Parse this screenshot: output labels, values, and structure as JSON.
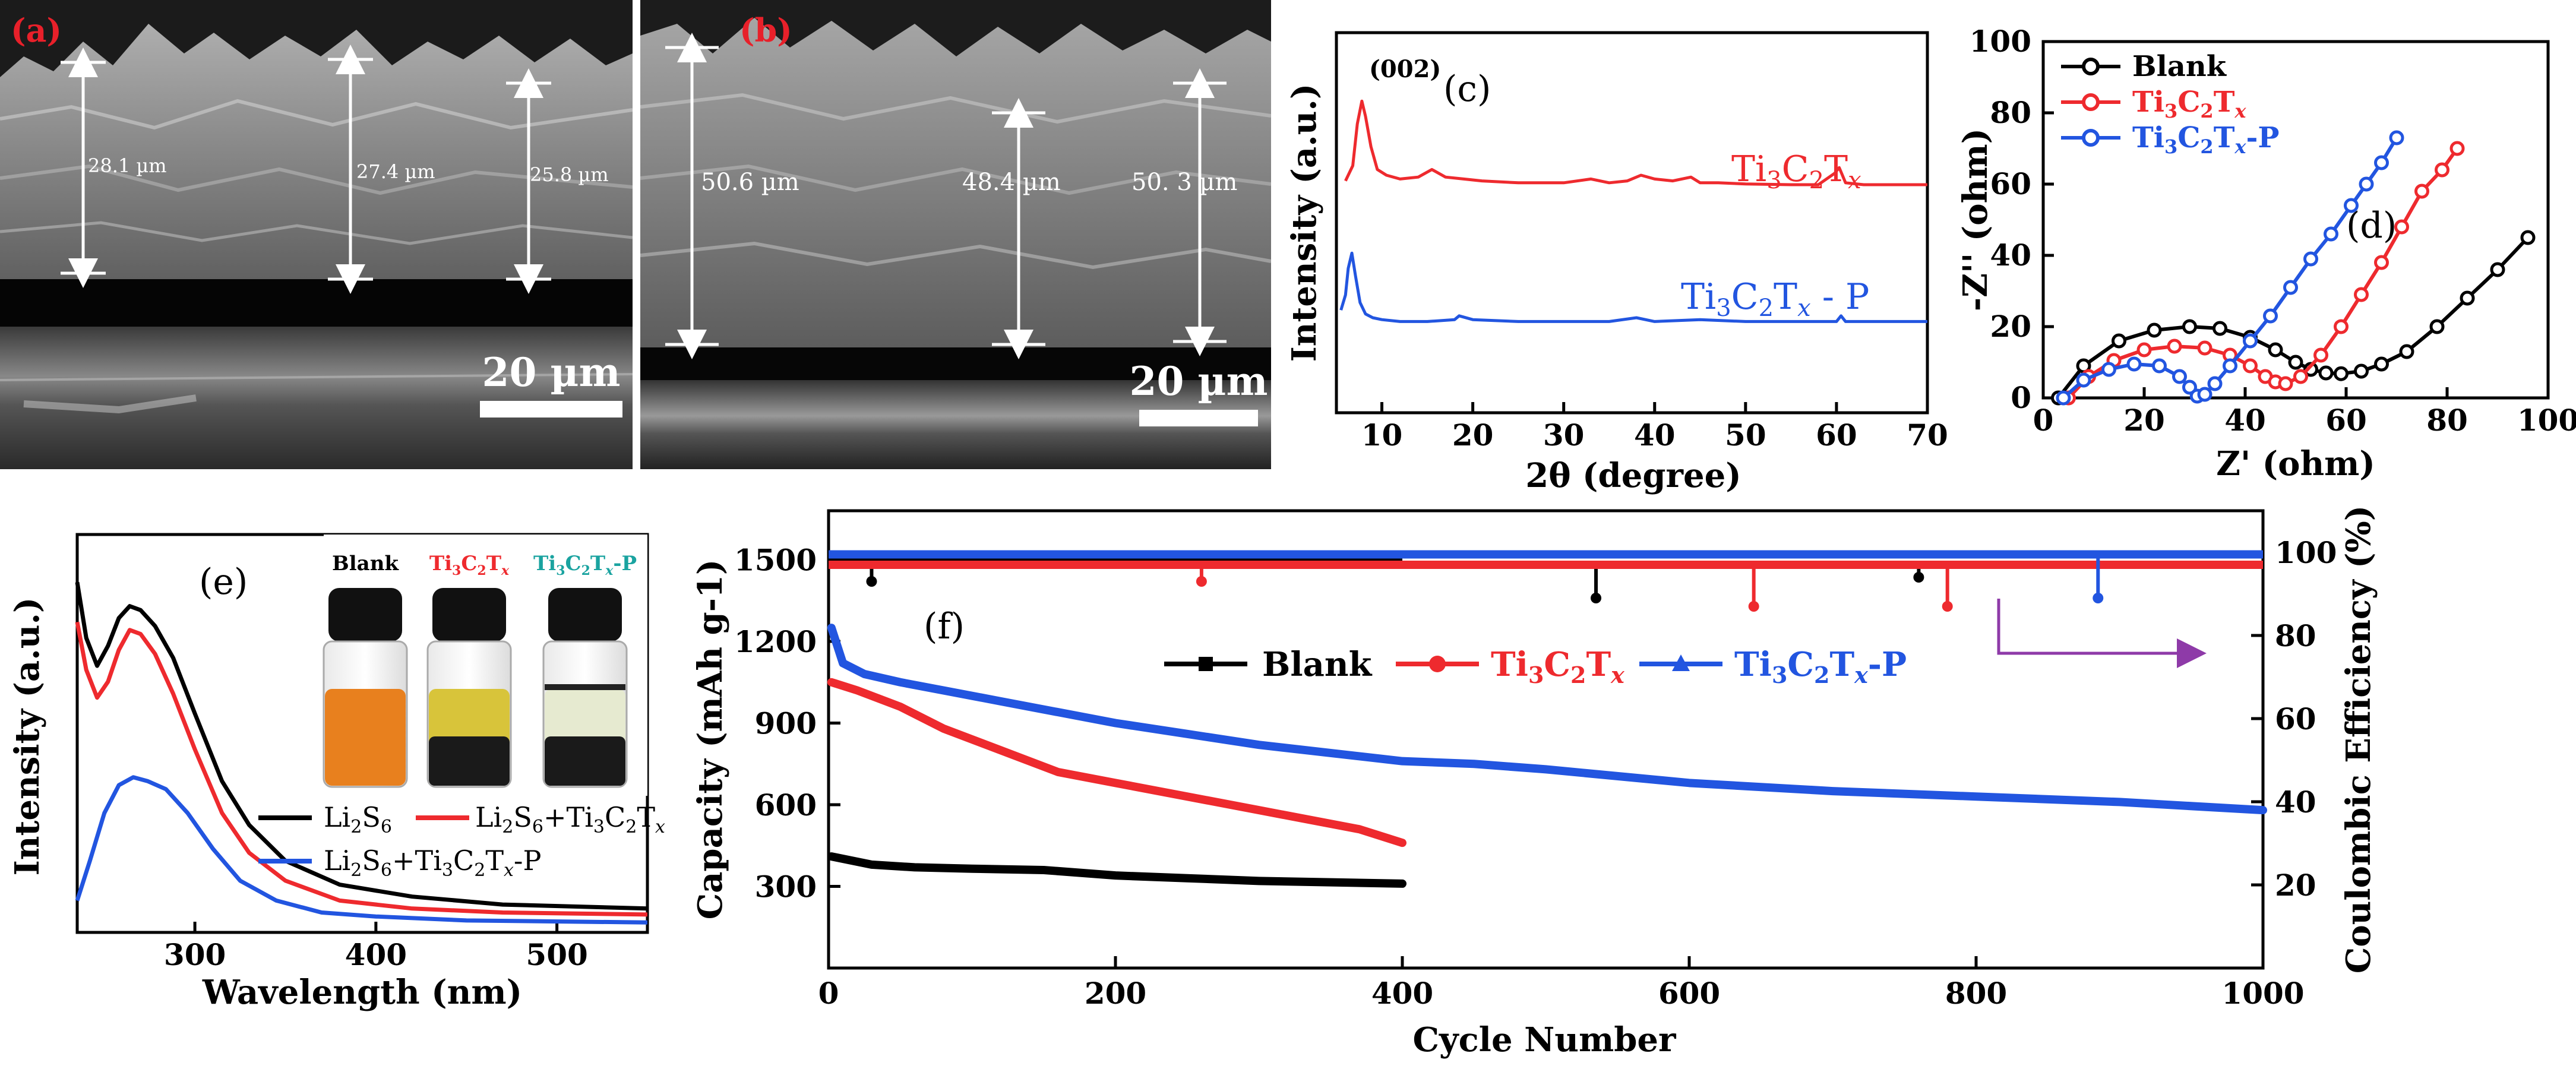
{
  "panel_labels": {
    "a": "(a)",
    "b": "(b)",
    "c": "(c)",
    "d": "(d)",
    "e": "(e)",
    "f": "(f)"
  },
  "colors": {
    "blank": "#000000",
    "mxene": "#ee2a2e",
    "mxene_p": "#2255e0",
    "arrow": "#8e3aa8",
    "panel_ab_label": "#e8202a"
  },
  "sem": {
    "a": {
      "measurements": [
        "28.1 µm",
        "27.4 µm",
        "25.8 µm"
      ],
      "scale_bar": "20 µm"
    },
    "b": {
      "measurements": [
        "50.6 µm",
        "48.4 µm",
        "50. 3 µm"
      ],
      "scale_bar": "20 µm"
    }
  },
  "inset_e": {
    "labels": {
      "blank": "Blank",
      "mxene": {
        "b": "Ti",
        "s1": "3",
        "c": "C",
        "s2": "2",
        "t": "T",
        "x": "x"
      },
      "mxene_p": {
        "b": "Ti",
        "s1": "3",
        "c": "C",
        "s2": "2",
        "t": "T",
        "x": "x",
        "suf": "-P"
      }
    },
    "vial_colors": [
      "#e8801e",
      "#d8c43a",
      "#e6ead0"
    ]
  },
  "chart_data": [
    {
      "id": "c",
      "type": "line",
      "title": "",
      "xlabel": "2θ (degree)",
      "ylabel": "Intensity (a.u.)",
      "xlim": [
        5,
        70
      ],
      "ylim": [
        0,
        10
      ],
      "x_ticks": [
        10,
        20,
        30,
        40,
        50,
        60,
        70
      ],
      "annotation": "(002)",
      "series": [
        {
          "name": "Ti3C2Tx",
          "label": {
            "b": "Ti",
            "s1": "3",
            "c": "C",
            "s2": "2",
            "t": "T",
            "x": "x",
            "suf": ""
          },
          "color": "#ee2a2e",
          "x": [
            6,
            6.8,
            7.3,
            7.8,
            8.2,
            8.8,
            9.5,
            10.5,
            12,
            14,
            15.5,
            17,
            19,
            21,
            25,
            30,
            33,
            35,
            37,
            38.5,
            40,
            42,
            44,
            45,
            47,
            50,
            55,
            58,
            59.8,
            60.3,
            61,
            63,
            66,
            70
          ],
          "y": [
            6.1,
            6.5,
            7.6,
            8.2,
            7.8,
            7,
            6.4,
            6.25,
            6.15,
            6.2,
            6.4,
            6.2,
            6.15,
            6.1,
            6.05,
            6.05,
            6.15,
            6.05,
            6.1,
            6.25,
            6.15,
            6.1,
            6.2,
            6.05,
            6.05,
            6.02,
            6.0,
            6.0,
            6.3,
            6.45,
            6.05,
            6.0,
            6.0,
            6.0
          ]
        },
        {
          "name": "Ti3C2Tx - P",
          "label": {
            "b": "Ti",
            "s1": "3",
            "c": "C",
            "s2": "2",
            "t": "T",
            "x": "x",
            "suf": " - P"
          },
          "color": "#2255e0",
          "x": [
            5.5,
            6,
            6.3,
            6.7,
            7.1,
            7.6,
            8.2,
            9,
            10,
            12,
            15,
            18,
            18.5,
            20,
            25,
            30,
            35,
            38,
            40,
            45,
            50,
            55,
            60,
            60.5,
            61,
            65,
            70
          ],
          "y": [
            2.7,
            3.1,
            3.8,
            4.2,
            3.6,
            2.9,
            2.6,
            2.5,
            2.45,
            2.4,
            2.4,
            2.45,
            2.55,
            2.45,
            2.4,
            2.4,
            2.4,
            2.5,
            2.4,
            2.45,
            2.4,
            2.4,
            2.4,
            2.55,
            2.4,
            2.4,
            2.4
          ]
        }
      ]
    },
    {
      "id": "d",
      "type": "scatter",
      "title": "",
      "xlabel": "Z' (ohm)",
      "ylabel": "-Z'' (ohm)",
      "xlim": [
        0,
        100
      ],
      "ylim": [
        0,
        100
      ],
      "x_ticks": [
        0,
        20,
        40,
        60,
        80,
        100
      ],
      "y_ticks": [
        0,
        20,
        40,
        60,
        80,
        100
      ],
      "series": [
        {
          "name": "Blank",
          "color": "#000000",
          "x": [
            3,
            8,
            15,
            22,
            29,
            35,
            41,
            46,
            50,
            53,
            56,
            59,
            63,
            67,
            72,
            78,
            84,
            90,
            96
          ],
          "y": [
            0,
            9,
            16,
            19,
            20,
            19.5,
            17,
            13.5,
            10,
            8,
            7,
            6.8,
            7.5,
            9.5,
            13,
            20,
            28,
            36,
            45
          ]
        },
        {
          "name": "Ti3C2Tx",
          "color": "#ee2a2e",
          "x": [
            5,
            9,
            14,
            20,
            26,
            32,
            37,
            41,
            44,
            46,
            48,
            51,
            55,
            59,
            63,
            67,
            71,
            75,
            79,
            82
          ],
          "y": [
            0,
            6,
            10.5,
            13.5,
            14.5,
            14,
            12,
            9,
            6,
            4.5,
            4,
            6,
            12,
            20,
            29,
            38,
            48,
            58,
            64,
            70
          ]
        },
        {
          "name": "Ti3C2Tx-P",
          "color": "#2255e0",
          "x": [
            4,
            8,
            13,
            18,
            23,
            27,
            29,
            30.5,
            32,
            34,
            37,
            41,
            45,
            49,
            53,
            57,
            61,
            64,
            67,
            70
          ],
          "y": [
            0,
            5,
            8,
            9.5,
            9,
            6,
            3,
            0.5,
            1,
            4,
            9,
            16,
            23,
            31,
            39,
            46,
            54,
            60,
            66,
            73
          ]
        }
      ]
    },
    {
      "id": "e",
      "type": "line",
      "title": "",
      "xlabel": "Wavelength (nm)",
      "ylabel": "Intensity (a.u.)",
      "xlim": [
        235,
        550
      ],
      "ylim": [
        0,
        100
      ],
      "x_ticks": [
        300,
        400,
        500
      ],
      "series": [
        {
          "name": "Li2S6",
          "label": {
            "b": "Li",
            "s1": "2",
            "c": "S",
            "s2": "6",
            "t": "",
            "x": "",
            "suf": ""
          },
          "color": "#000000",
          "x": [
            235,
            240,
            246,
            252,
            258,
            264,
            270,
            278,
            288,
            300,
            315,
            330,
            350,
            380,
            420,
            470,
            550
          ],
          "y": [
            88,
            74,
            67,
            72,
            79,
            82,
            81,
            77,
            69,
            55,
            38,
            27,
            18,
            12,
            9,
            7,
            6
          ]
        },
        {
          "name": "Li2S6+Ti3C2Tx",
          "label": {
            "b": "Li",
            "s1": "2",
            "c": "S",
            "s2": "6",
            "t": "+Ti",
            "x": "3",
            "suf": "C2Tx"
          },
          "color": "#ee2a2e",
          "x": [
            235,
            240,
            246,
            252,
            258,
            264,
            270,
            278,
            288,
            300,
            315,
            330,
            350,
            380,
            420,
            470,
            550
          ],
          "y": [
            78,
            66,
            59,
            63,
            71,
            76,
            75,
            70,
            60,
            46,
            30,
            20,
            13,
            8,
            6,
            5,
            4.5
          ]
        },
        {
          "name": "Li2S6+Ti3C2Tx-P",
          "label": {
            "b": "Li",
            "s1": "2",
            "c": "S",
            "s2": "6",
            "t": "+Ti",
            "x": "3",
            "suf": "C2Tx-P"
          },
          "color": "#2255e0",
          "x": [
            235,
            242,
            250,
            258,
            266,
            274,
            284,
            296,
            310,
            325,
            345,
            370,
            400,
            450,
            550
          ],
          "y": [
            8,
            18,
            30,
            37,
            39,
            38,
            36,
            30,
            21,
            13,
            8,
            5,
            4,
            3,
            2.5
          ]
        }
      ]
    },
    {
      "id": "f",
      "type": "line",
      "title": "",
      "xlabel": "Cycle Number",
      "ylabel": "Capacity (mAh g-1)",
      "y2label": "Coulombic Efficiency (%)",
      "xlim": [
        0,
        1000
      ],
      "ylim": [
        0,
        1680
      ],
      "y2lim": [
        0,
        110
      ],
      "x_ticks": [
        0,
        200,
        400,
        600,
        800,
        1000
      ],
      "y_ticks": [
        300,
        600,
        900,
        1200,
        1500
      ],
      "y2_ticks": [
        20,
        40,
        60,
        80,
        100
      ],
      "capacity_series": [
        {
          "name": "Blank",
          "color": "#000000",
          "x": [
            2,
            30,
            60,
            100,
            150,
            200,
            250,
            300,
            350,
            400
          ],
          "y": [
            410,
            380,
            370,
            365,
            360,
            340,
            330,
            320,
            315,
            310
          ]
        },
        {
          "name": "Ti3C2Tx",
          "color": "#ee2a2e",
          "x": [
            2,
            20,
            50,
            80,
            120,
            160,
            200,
            250,
            300,
            340,
            370,
            400
          ],
          "y": [
            1050,
            1020,
            960,
            880,
            800,
            720,
            680,
            630,
            580,
            540,
            510,
            460
          ]
        },
        {
          "name": "Ti3C2Tx-P",
          "color": "#2255e0",
          "x": [
            2,
            10,
            25,
            50,
            80,
            120,
            160,
            200,
            250,
            300,
            350,
            400,
            450,
            500,
            600,
            700,
            800,
            900,
            1000
          ],
          "y": [
            1250,
            1120,
            1080,
            1050,
            1020,
            980,
            940,
            900,
            860,
            820,
            790,
            760,
            750,
            730,
            680,
            650,
            630,
            610,
            580
          ]
        }
      ],
      "ce_series": [
        {
          "name": "Blank",
          "color": "#000000",
          "x": [
            0,
            100,
            200,
            300,
            400
          ],
          "y": [
            98,
            98,
            98,
            98,
            98
          ],
          "dips_x": [
            30,
            535,
            760
          ],
          "dips_y": [
            93,
            89,
            94
          ]
        },
        {
          "name": "Ti3C2Tx",
          "color": "#ee2a2e",
          "x": [
            0,
            200,
            400,
            600,
            800,
            1000
          ],
          "y": [
            97,
            97,
            97,
            97,
            97,
            97
          ],
          "dips_x": [
            260,
            645,
            780
          ],
          "dips_y": [
            93,
            87,
            87
          ]
        },
        {
          "name": "Ti3C2Tx-P",
          "color": "#2255e0",
          "x": [
            0,
            200,
            400,
            600,
            800,
            1000
          ],
          "y": [
            99.5,
            99.5,
            99.5,
            99.5,
            99.5,
            99.5
          ],
          "dips_x": [
            885
          ],
          "dips_y": [
            89
          ]
        }
      ],
      "legend": [
        {
          "name": "Blank",
          "color": "#000000",
          "label": {
            "b": "Blank",
            "s1": "",
            "c": "",
            "s2": "",
            "t": "",
            "x": "",
            "suf": ""
          }
        },
        {
          "name": "Ti3C2Tx",
          "color": "#ee2a2e",
          "label": {
            "b": "Ti",
            "s1": "3",
            "c": "C",
            "s2": "2",
            "t": "T",
            "x": "x",
            "suf": ""
          }
        },
        {
          "name": "Ti3C2Tx-P",
          "color": "#2255e0",
          "label": {
            "b": "Ti",
            "s1": "3",
            "c": "C",
            "s2": "2",
            "t": "T",
            "x": "x",
            "suf": "-P"
          }
        }
      ]
    }
  ]
}
